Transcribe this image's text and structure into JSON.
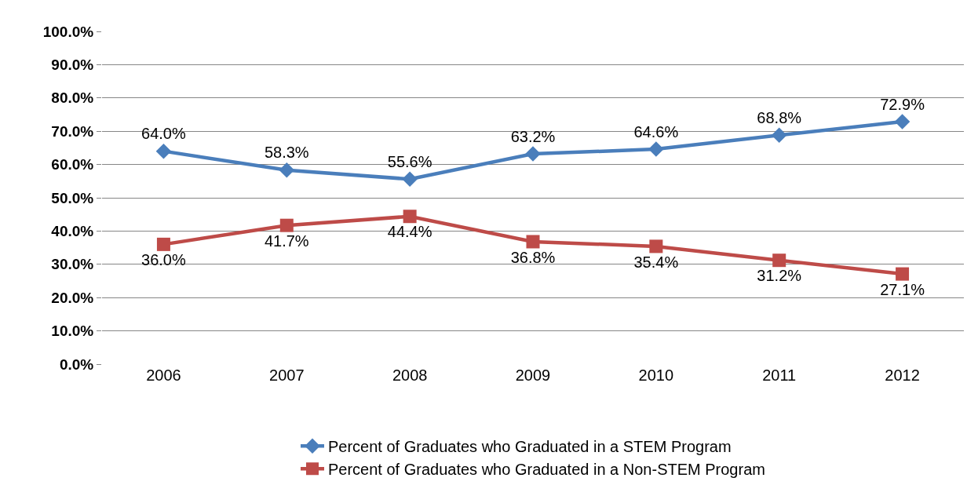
{
  "chart_data": {
    "type": "line",
    "categories": [
      "2006",
      "2007",
      "2008",
      "2009",
      "2010",
      "2011",
      "2012"
    ],
    "series": [
      {
        "name": "Percent of Graduates who Graduated in a STEM Program",
        "color": "#4a7ebb",
        "marker": "diamond",
        "values": [
          64.0,
          58.3,
          55.6,
          63.2,
          64.6,
          68.8,
          72.9
        ],
        "value_labels": [
          "64.0%",
          "58.3%",
          "55.6%",
          "63.2%",
          "64.6%",
          "68.8%",
          "72.9%"
        ]
      },
      {
        "name": "Percent of Graduates who Graduated in a Non-STEM Program",
        "color": "#be4b48",
        "marker": "square",
        "values": [
          36.0,
          41.7,
          44.4,
          36.8,
          35.4,
          31.2,
          27.1
        ],
        "value_labels": [
          "36.0%",
          "41.7%",
          "44.4%",
          "36.8%",
          "35.4%",
          "31.2%",
          "27.1%"
        ]
      }
    ],
    "ylim": [
      0,
      100
    ],
    "yticks": [
      {
        "value": 0,
        "label": "0.0%"
      },
      {
        "value": 10,
        "label": "10.0%"
      },
      {
        "value": 20,
        "label": "20.0%"
      },
      {
        "value": 30,
        "label": "30.0%"
      },
      {
        "value": 40,
        "label": "40.0%"
      },
      {
        "value": 50,
        "label": "50.0%"
      },
      {
        "value": 60,
        "label": "60.0%"
      },
      {
        "value": 70,
        "label": "70.0%"
      },
      {
        "value": 80,
        "label": "80.0%"
      },
      {
        "value": 90,
        "label": "90.0%"
      },
      {
        "value": 100,
        "label": "100.0%"
      }
    ],
    "grid": "y",
    "legend": "bottom",
    "line_style": "solid"
  }
}
